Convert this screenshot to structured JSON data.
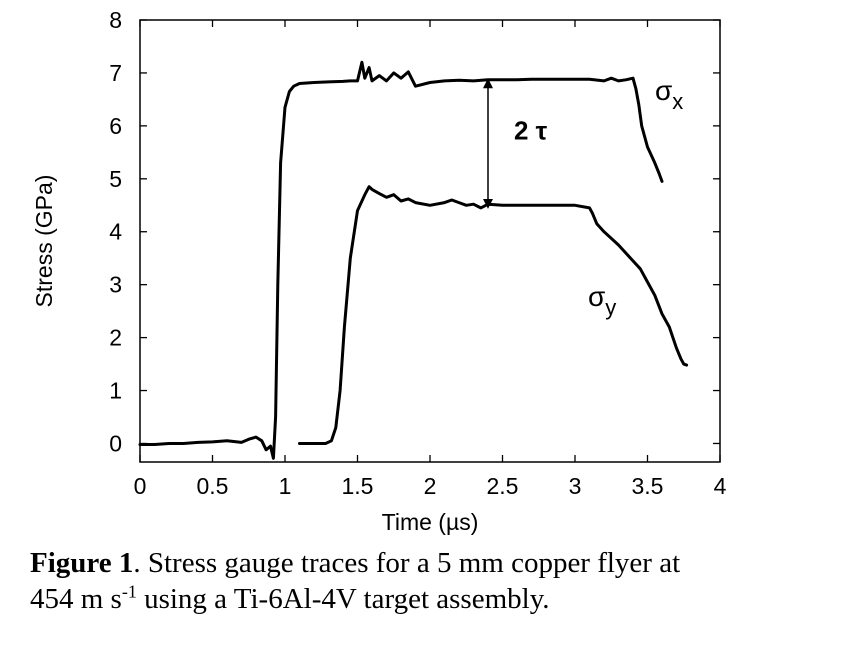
{
  "chart_data": {
    "type": "line",
    "xlabel": "Time (µs)",
    "ylabel": "Stress (GPa)",
    "xlim": [
      0,
      4
    ],
    "ylim": [
      -0.35,
      8
    ],
    "xticks": [
      "0",
      "0.5",
      "1",
      "1.5",
      "2",
      "2.5",
      "3",
      "3.5",
      "4"
    ],
    "yticks": [
      "0",
      "1",
      "2",
      "3",
      "4",
      "5",
      "6",
      "7",
      "8"
    ],
    "grid": false,
    "series": [
      {
        "name": "σx",
        "label_main": "σ",
        "label_sub": "x",
        "color": "#000000",
        "x": [
          0.0,
          0.1,
          0.2,
          0.3,
          0.4,
          0.5,
          0.6,
          0.7,
          0.75,
          0.8,
          0.84,
          0.87,
          0.9,
          0.92,
          0.935,
          0.95,
          0.97,
          1.0,
          1.03,
          1.06,
          1.1,
          1.2,
          1.3,
          1.4,
          1.45,
          1.5,
          1.53,
          1.55,
          1.58,
          1.6,
          1.65,
          1.7,
          1.75,
          1.8,
          1.85,
          1.9,
          2.0,
          2.1,
          2.2,
          2.3,
          2.4,
          2.5,
          2.6,
          2.7,
          2.8,
          2.9,
          3.0,
          3.1,
          3.2,
          3.25,
          3.3,
          3.35,
          3.4,
          3.42,
          3.44,
          3.46,
          3.5,
          3.55,
          3.58,
          3.6
        ],
        "y": [
          -0.02,
          -0.02,
          0.0,
          0.0,
          0.02,
          0.03,
          0.05,
          0.02,
          0.08,
          0.12,
          0.05,
          -0.12,
          -0.05,
          -0.28,
          0.5,
          3.0,
          5.3,
          6.35,
          6.65,
          6.75,
          6.8,
          6.82,
          6.83,
          6.84,
          6.85,
          6.85,
          7.2,
          6.9,
          7.1,
          6.85,
          6.95,
          6.85,
          7.0,
          6.9,
          7.02,
          6.75,
          6.82,
          6.85,
          6.86,
          6.85,
          6.87,
          6.87,
          6.87,
          6.88,
          6.88,
          6.88,
          6.88,
          6.88,
          6.85,
          6.9,
          6.85,
          6.87,
          6.9,
          6.7,
          6.4,
          6.0,
          5.6,
          5.3,
          5.1,
          4.95
        ]
      },
      {
        "name": "σy",
        "label_main": "σ",
        "label_sub": "y",
        "color": "#000000",
        "x": [
          1.1,
          1.2,
          1.28,
          1.32,
          1.35,
          1.38,
          1.41,
          1.45,
          1.5,
          1.55,
          1.58,
          1.6,
          1.65,
          1.7,
          1.75,
          1.8,
          1.85,
          1.9,
          2.0,
          2.1,
          2.15,
          2.2,
          2.25,
          2.3,
          2.35,
          2.4,
          2.5,
          2.6,
          2.7,
          2.8,
          2.9,
          3.0,
          3.1,
          3.12,
          3.15,
          3.2,
          3.3,
          3.4,
          3.45,
          3.5,
          3.55,
          3.6,
          3.65,
          3.7,
          3.73,
          3.75,
          3.77
        ],
        "y": [
          0.0,
          0.0,
          0.0,
          0.05,
          0.3,
          1.0,
          2.2,
          3.5,
          4.4,
          4.7,
          4.85,
          4.8,
          4.72,
          4.65,
          4.7,
          4.58,
          4.62,
          4.55,
          4.5,
          4.55,
          4.6,
          4.55,
          4.5,
          4.52,
          4.45,
          4.52,
          4.5,
          4.5,
          4.5,
          4.5,
          4.5,
          4.5,
          4.45,
          4.35,
          4.15,
          4.0,
          3.75,
          3.45,
          3.3,
          3.05,
          2.8,
          2.45,
          2.2,
          1.8,
          1.6,
          1.5,
          1.48
        ]
      }
    ],
    "annotations": [
      {
        "text": "2 τ",
        "type": "double-arrow",
        "x": 2.4,
        "y_from": 4.45,
        "y_to": 6.88
      }
    ]
  },
  "caption": {
    "label": "Figure 1",
    "text_line1": ". Stress gauge traces for a 5 mm copper flyer at",
    "text_line2_pre": "454 m s",
    "text_line2_sup": "-1",
    "text_line2_post": " using a Ti-6Al-4V target assembly."
  }
}
